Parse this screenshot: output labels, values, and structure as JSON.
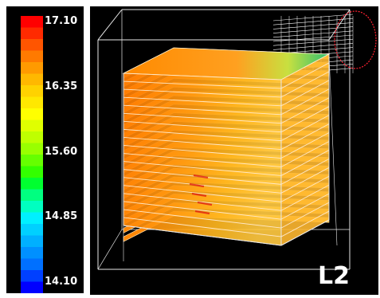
{
  "colorbar": {
    "ticks": [
      "17.10",
      "16.35",
      "15.60",
      "14.85",
      "14.10"
    ],
    "colors_top_to_bottom": [
      "#ff0000",
      "#ff2a00",
      "#ff5500",
      "#ff7a00",
      "#ff9a00",
      "#ffb800",
      "#ffd200",
      "#ffe800",
      "#ffff00",
      "#e0ff00",
      "#bfff00",
      "#99ff00",
      "#66ff00",
      "#33ff00",
      "#00ff30",
      "#00ff80",
      "#00ffc0",
      "#00f0ff",
      "#00d0ff",
      "#00b0ff",
      "#0090ff",
      "#0070ff",
      "#0040ff",
      "#0000ff"
    ]
  },
  "view": {
    "label": "L2"
  }
}
